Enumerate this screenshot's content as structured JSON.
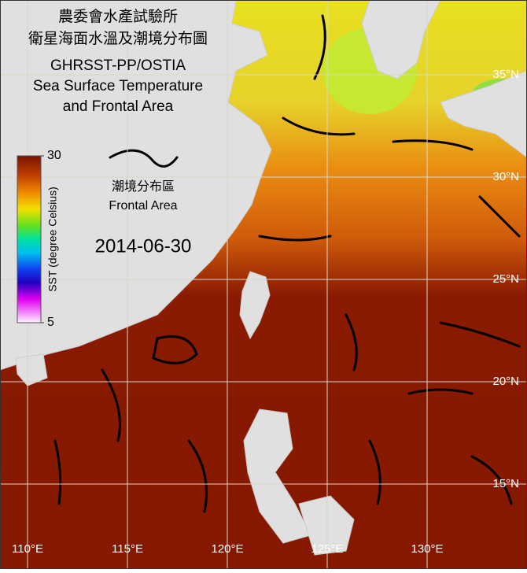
{
  "header": {
    "lines": [
      "農委會水產試驗所",
      "衛星海面水溫及潮境分布圖",
      "GHRSST-PP/OSTIA",
      "Sea Surface Temperature",
      "and Frontal Area"
    ]
  },
  "colorbar": {
    "label": "SST (degree Celsius)",
    "lim": [
      5,
      30
    ],
    "ticks": [
      5,
      30
    ]
  },
  "legend": {
    "label_zh": "潮境分布區",
    "label_en": "Frontal Area"
  },
  "date": "2014-06-30",
  "graticule": {
    "lat_ticks": [
      {
        "value": 35,
        "label": "35°N"
      },
      {
        "value": 30,
        "label": "30°N"
      },
      {
        "value": 25,
        "label": "25°N"
      },
      {
        "value": 20,
        "label": "20°N"
      },
      {
        "value": 15,
        "label": "15°N"
      }
    ],
    "lon_ticks": [
      {
        "value": 110,
        "label": "110°E"
      },
      {
        "value": 115,
        "label": "115°E"
      },
      {
        "value": 120,
        "label": "120°E"
      },
      {
        "value": 125,
        "label": "125°E"
      },
      {
        "value": 130,
        "label": "130°E"
      }
    ]
  }
}
